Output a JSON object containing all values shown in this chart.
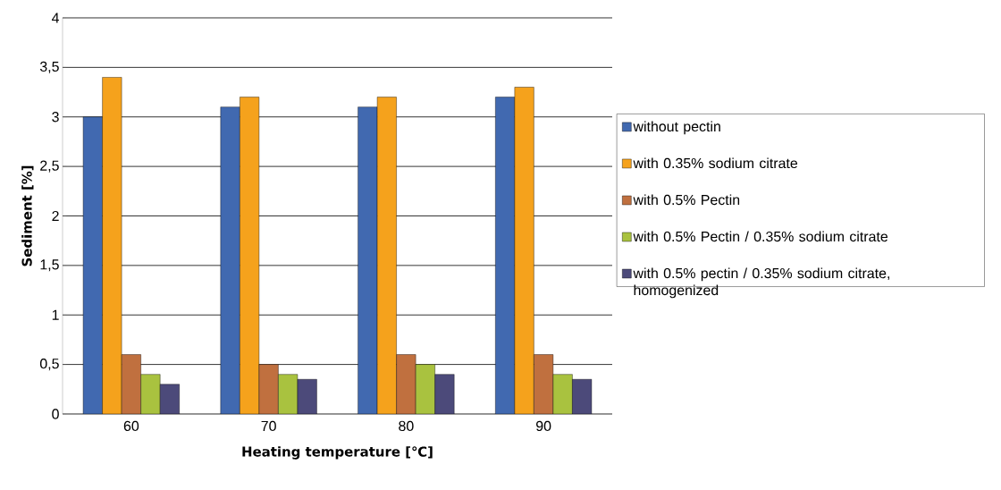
{
  "chart_data": {
    "type": "bar",
    "xlabel": "Heating temperature [℃]",
    "ylabel": "Sediment [%]",
    "categories": [
      "60",
      "70",
      "80",
      "90"
    ],
    "series": [
      {
        "name": "without pectin",
        "color": "#4169b0",
        "values": [
          3.0,
          3.1,
          3.1,
          3.2
        ]
      },
      {
        "name": "with 0.35% sodium citrate",
        "color": "#f5a21c",
        "values": [
          3.4,
          3.2,
          3.2,
          3.3
        ]
      },
      {
        "name": "with 0.5% Pectin",
        "color": "#c0703f",
        "values": [
          0.6,
          0.5,
          0.6,
          0.6
        ]
      },
      {
        "name": "with 0.5% Pectin / 0.35% sodium citrate",
        "color": "#a9c23f",
        "values": [
          0.4,
          0.4,
          0.5,
          0.4
        ]
      },
      {
        "name": "with 0.5% pectin / 0.35% sodium citrate, homogenized",
        "color": "#4c4a7a",
        "values": [
          0.3,
          0.35,
          0.4,
          0.35
        ]
      }
    ],
    "ylim": [
      0,
      4
    ],
    "yticks": [
      0,
      {
        "value": 0.5,
        "label": "0,5"
      },
      1,
      {
        "value": 1.5,
        "label": "1,5"
      },
      2,
      {
        "value": 2.5,
        "label": "2,5"
      },
      3,
      {
        "value": 3.5,
        "label": "3,5"
      },
      4
    ],
    "grid": "y",
    "legend": "right"
  }
}
